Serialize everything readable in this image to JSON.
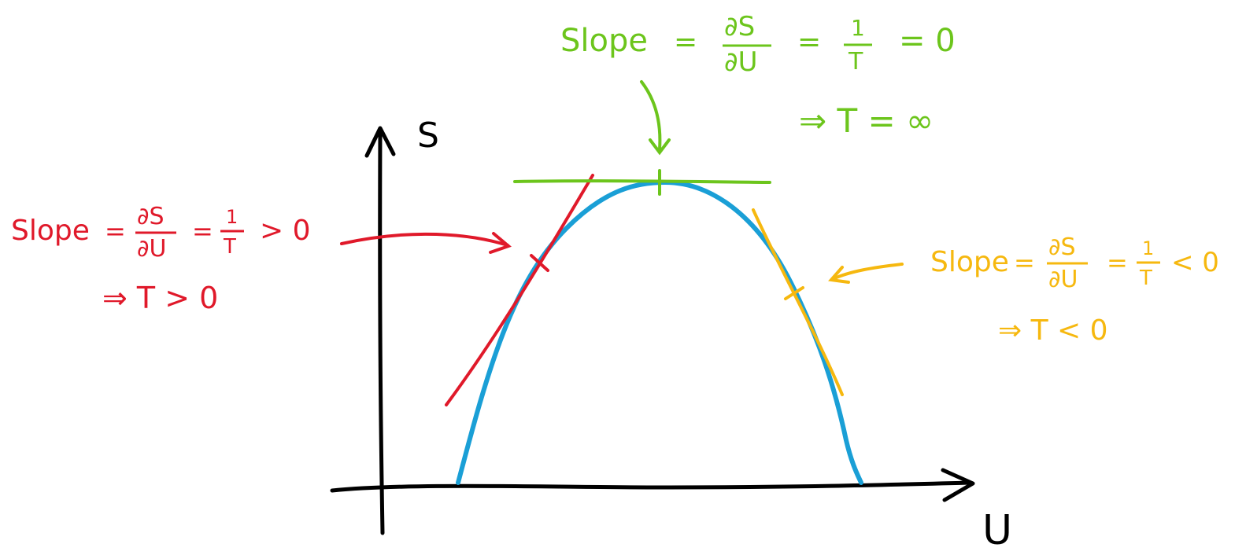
{
  "axes": {
    "y_label": "S",
    "x_label": "U"
  },
  "colors": {
    "curve": "#1a9fd6",
    "left_tangent": "#e0192a",
    "top_tangent": "#6cc51c",
    "right_tangent": "#f6b80f",
    "axes": "#000000"
  },
  "annotations": {
    "top": {
      "slope_word": "Slope",
      "equals": "=",
      "deriv_num": "∂S",
      "deriv_den": "∂U",
      "recip_num": "1",
      "recip_den": "T",
      "relation": "= 0",
      "implies": "⇒ T = ∞"
    },
    "left": {
      "slope_word": "Slope",
      "equals": "=",
      "deriv_num": "∂S",
      "deriv_den": "∂U",
      "recip_num": "1",
      "recip_den": "T",
      "relation": "> 0",
      "implies": "⇒ T > 0"
    },
    "right": {
      "slope_word": "Slope",
      "equals": "=",
      "deriv_num": "∂S",
      "deriv_den": "∂U",
      "recip_num": "1",
      "recip_den": "T",
      "relation": "< 0",
      "implies": "⇒ T < 0"
    }
  }
}
